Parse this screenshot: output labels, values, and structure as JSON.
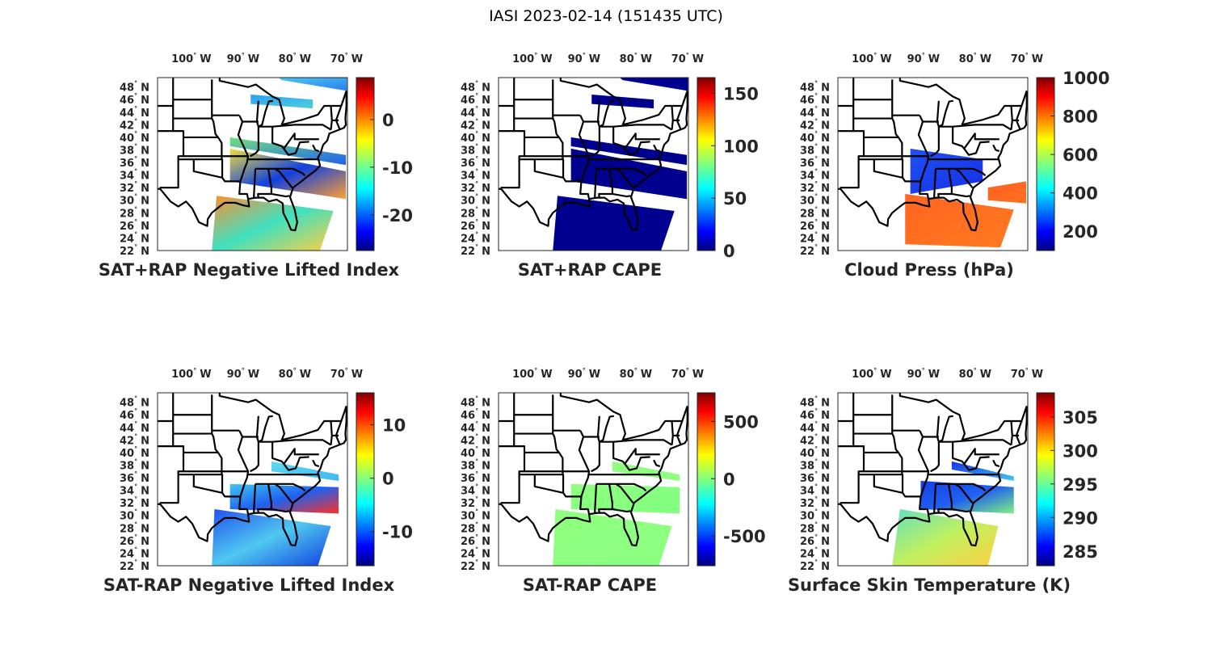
{
  "figure_title": "IASI 2023-02-14 (151435 UTC)",
  "lon_ticks": [
    {
      "value": -100,
      "label": "100",
      "unit": "W"
    },
    {
      "value": -90,
      "label": "90",
      "unit": "W"
    },
    {
      "value": -80,
      "label": "80",
      "unit": "W"
    },
    {
      "value": -70,
      "label": "70",
      "unit": "W"
    }
  ],
  "lat_ticks": [
    {
      "value": 48,
      "label": "48",
      "unit": "N"
    },
    {
      "value": 46,
      "label": "46",
      "unit": "N"
    },
    {
      "value": 44,
      "label": "44",
      "unit": "N"
    },
    {
      "value": 42,
      "label": "42",
      "unit": "N"
    },
    {
      "value": 40,
      "label": "40",
      "unit": "N"
    },
    {
      "value": 38,
      "label": "38",
      "unit": "N"
    },
    {
      "value": 36,
      "label": "36",
      "unit": "N"
    },
    {
      "value": 34,
      "label": "34",
      "unit": "N"
    },
    {
      "value": 32,
      "label": "32",
      "unit": "N"
    },
    {
      "value": 30,
      "label": "30",
      "unit": "N"
    },
    {
      "value": 28,
      "label": "28",
      "unit": "N"
    },
    {
      "value": 26,
      "label": "26",
      "unit": "N"
    },
    {
      "value": 24,
      "label": "24",
      "unit": "N"
    },
    {
      "value": 22,
      "label": "22",
      "unit": "N"
    }
  ],
  "map_extent": {
    "lon": [
      -107,
      -70.3
    ],
    "lat": [
      22,
      49.5
    ]
  },
  "colormap": "jet",
  "panels": [
    {
      "title": "SAT+RAP Negative Lifted Index",
      "clim": [
        -27.5,
        8.8
      ],
      "cticks": [
        0,
        -10,
        -20
      ]
    },
    {
      "title": "SAT+RAP CAPE",
      "clim": [
        0,
        165
      ],
      "cticks": [
        150,
        100,
        50,
        0
      ]
    },
    {
      "title": "Cloud Press (hPa)",
      "clim": [
        100,
        1000
      ],
      "cticks": [
        1000,
        800,
        600,
        400,
        200
      ]
    },
    {
      "title": "SAT-RAP Negative Lifted Index",
      "clim": [
        -16.4,
        16
      ],
      "cticks": [
        10,
        0,
        -10
      ]
    },
    {
      "title": "SAT-RAP CAPE",
      "clim": [
        -760,
        750
      ],
      "cticks": [
        500,
        0,
        -500
      ]
    },
    {
      "title": "Surface Skin Temperature (K)",
      "clim": [
        282.8,
        308.6
      ],
      "cticks": [
        305,
        300,
        295,
        290,
        285
      ]
    }
  ]
}
